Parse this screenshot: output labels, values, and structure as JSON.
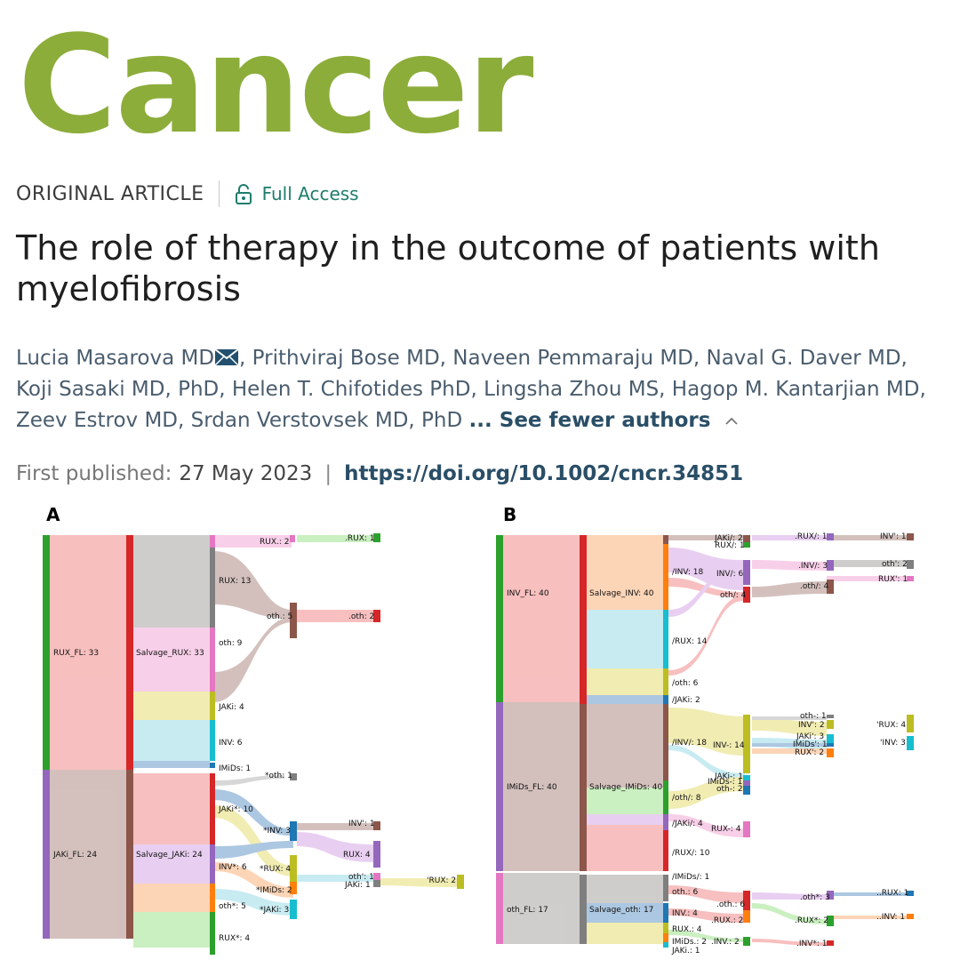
{
  "journal": {
    "name": "Cancer"
  },
  "header": {
    "article_type": "ORIGINAL ARTICLE",
    "access_label": "Full Access",
    "title": "The role of therapy in the outcome of patients with myelofibrosis"
  },
  "authors": {
    "line1": ", Prithviraj Bose MD, Naveen Pemmaraju MD, Naval G. Daver MD,",
    "first": "Lucia Masarova MD",
    "line2": "Koji Sasaki MD, PhD, Helen T. Chifotides PhD, Lingsha Zhou MS, Hagop M. Kantarjian MD,",
    "line3": "Zeev Estrov MD, Srdan Verstovsek MD, PhD",
    "toggle": "... See fewer authors"
  },
  "publication": {
    "label": "First published:",
    "date": "27 May 2023",
    "doi": "https://doi.org/10.1002/cncr.34851"
  },
  "figure": {
    "panel_a": {
      "letter": "A",
      "labels": {
        "n1": "RUX_FL: 33",
        "n2": "JAKi_FL: 24",
        "n3": "Salvage_RUX: 33",
        "n4": "Salvage_JAKi: 24",
        "n5": "RUX.: 2",
        "n6": "RUX: 13",
        "n7": "oth: 9",
        "n8": "JAKi: 4",
        "n9": "INV: 6",
        "n10": "IMiDs: 1",
        "n11": "*oth: 1",
        "n12": "JAKi*: 10",
        "n13": "*INV: 3",
        "n14": "INV*: 6",
        "n15": "*RUX: 4",
        "n16": "*IMiDs: 2",
        "n17": "oth*: 5",
        "n18": "*JAKi: 3",
        "n19": "RUX*: 4",
        "n20": ".RUX: 1",
        "n21": "oth.: 5",
        "n22": ".oth: 2",
        "n23": "INV': 1",
        "n24": "RUX: 4",
        "n25": "oth': 1",
        "n26": "JAKi: 1",
        "n27": "'RUX: 2"
      }
    },
    "panel_b": {
      "letter": "B",
      "labels": {
        "n1": "INV_FL: 40",
        "n2": "IMiDs_FL: 40",
        "n3": "oth_FL: 17",
        "n4": "Salvage_INV: 40",
        "n5": "Salvage_IMiDs: 40",
        "n6": "Salvage_oth: 17",
        "n7": "JAKi/: 2",
        "n8": "RUX/: 1",
        "n9": "/INV: 18",
        "n10": "INV/: 6",
        "n11": "oth/: 4",
        "n12": "/RUX: 14",
        "n13": "/oth: 6",
        "n14": "/JAKi: 2",
        "n15": ".RUX/: 1",
        "n16": "INV': 1",
        "n17": ".INV/: 3",
        "n18": "oth': 2",
        "n19": ".oth/: 4",
        "n20": "RUX': 1",
        "n21": "/INV/: 18",
        "n22": "INV-: 14",
        "n23": "JAKi-: 1",
        "n24": "IMiDs-: 1",
        "n25": "oth-: 2",
        "n26": "/oth/: 8",
        "n27": "/JAKi/: 4",
        "n28": "RUX-: 4",
        "n29": "/RUX/: 10",
        "n30": "/IMiDs/: 1",
        "n31": "oth-: 1",
        "n32": "INV': 2",
        "n33": "JAKi': 3",
        "n34": "IMiDs': 1",
        "n35": "RUX': 2",
        "n36": "'RUX: 4",
        "n37": "'INV: 3",
        "n38": "oth.: 6",
        "n39": "INV.: 4",
        "n40": "RUX.: 4",
        "n41": "IMiDs.: 2",
        "n42": "JAKi.: 1",
        "n43": ".oth.: 6",
        "n44": ".RUX.: 2",
        "n45": ".INV.: 2",
        "n46": ".oth*: 3",
        "n47": ".RUX*: 2",
        "n48": ".INV*: 1",
        "n49": "..RUX: 1",
        "n50": "..INV: 1"
      }
    }
  }
}
